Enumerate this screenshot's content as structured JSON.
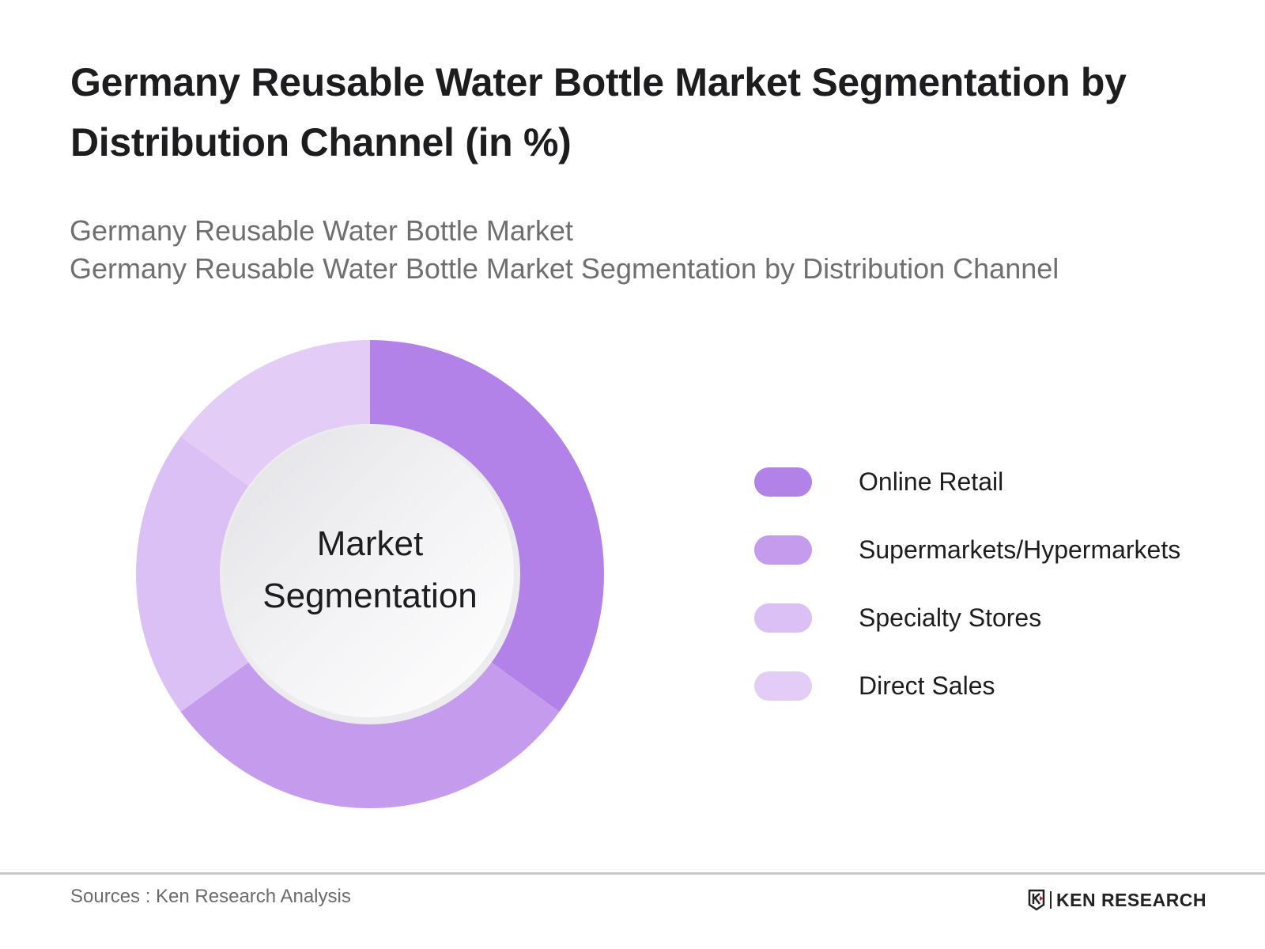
{
  "header": {
    "title": "Germany Reusable Water Bottle Market Segmentation by Distribution Channel (in %)",
    "subtitle_line1": "Germany Reusable Water Bottle Market",
    "subtitle_line2": "Germany Reusable Water Bottle Market Segmentation by Distribution Channel"
  },
  "center_label": {
    "line1": "Market",
    "line2": "Segmentation"
  },
  "legend": [
    {
      "label": "Online Retail",
      "color": "#b282e9"
    },
    {
      "label": "Supermarkets/Hypermarkets",
      "color": "#c59ced"
    },
    {
      "label": "Specialty Stores",
      "color": "#dbc0f5"
    },
    {
      "label": "Direct Sales",
      "color": "#e3cdf7"
    }
  ],
  "footer": {
    "source": "Sources : Ken Research Analysis",
    "logo_text": "KEN RESEARCH",
    "logo_icon": "ken-research-k-shield-icon"
  },
  "chart_data": {
    "type": "pie",
    "variant": "donut",
    "title": "Germany Reusable Water Bottle Market Segmentation by Distribution Channel (in %)",
    "subtitle": "Germany Reusable Water Bottle Market Segmentation by Distribution Channel",
    "categories": [
      "Online Retail",
      "Supermarkets/Hypermarkets",
      "Specialty Stores",
      "Direct Sales"
    ],
    "values": [
      35,
      30,
      20,
      15
    ],
    "colors": [
      "#b282e9",
      "#c59ced",
      "#dbc0f5",
      "#e3cdf7"
    ],
    "center_text": "Market Segmentation",
    "data_labels": false,
    "legend_position": "right",
    "start_angle_deg": 0,
    "direction": "clockwise",
    "unit": "%"
  }
}
